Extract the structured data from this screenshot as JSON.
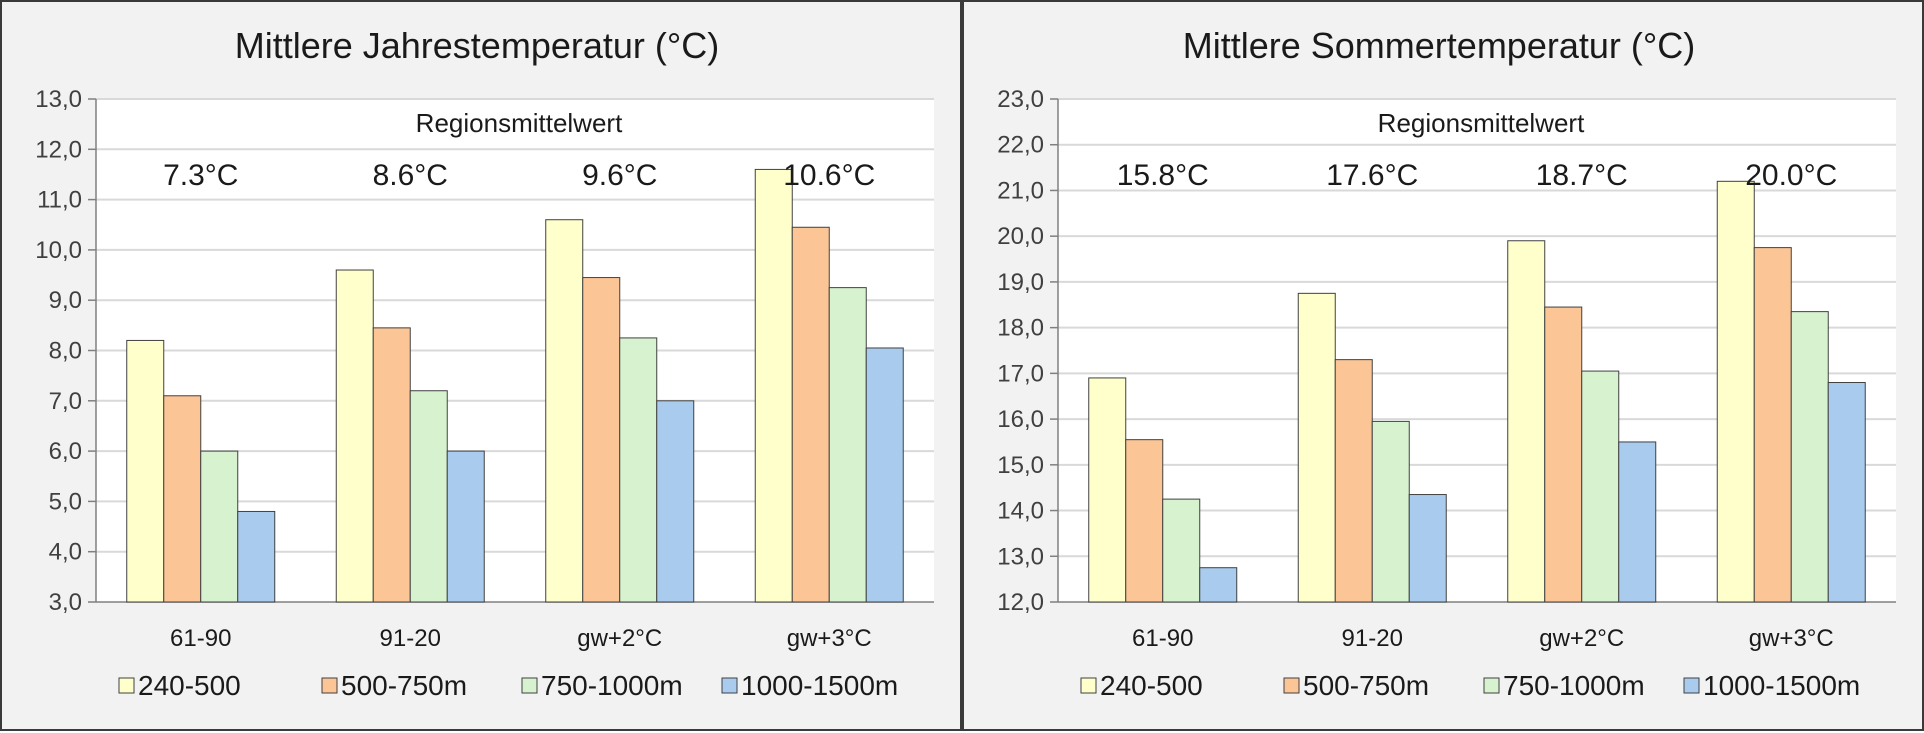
{
  "colors": {
    "240-500": "#ffffcc",
    "500-750m": "#fcc596",
    "750-1000m": "#d7f2cf",
    "1000-1500m": "#a9cbee",
    "bar_outline": "#404040",
    "grid": "#d9d9d9",
    "panel_background": "#f2f2f2"
  },
  "chart_data": [
    {
      "type": "bar",
      "title": "Mittlere Jahrestemperatur (°C)",
      "categories": [
        "61-90",
        "91-20",
        "gw+2°C",
        "gw+3°C"
      ],
      "ylim": [
        3.0,
        13.0
      ],
      "yticks": [
        "3,0",
        "4,0",
        "5,0",
        "6,0",
        "7,0",
        "8,0",
        "9,0",
        "10,0",
        "11,0",
        "12,0",
        "13,0"
      ],
      "ytick_step": 1.0,
      "grid": true,
      "legend_position": "bottom",
      "annotation": "Regionsmittelwert",
      "region_means": [
        "7.3°C",
        "8.6°C",
        "9.6°C",
        "10.6°C"
      ],
      "series": [
        {
          "name": "240-500",
          "values": [
            8.2,
            9.6,
            10.6,
            11.6
          ]
        },
        {
          "name": "500-750m",
          "values": [
            7.1,
            8.45,
            9.45,
            10.45
          ]
        },
        {
          "name": "750-1000m",
          "values": [
            6.0,
            7.2,
            8.25,
            9.25
          ]
        },
        {
          "name": "1000-1500m",
          "values": [
            4.8,
            6.0,
            7.0,
            8.05
          ]
        }
      ]
    },
    {
      "type": "bar",
      "title": "Mittlere Sommertemperatur (°C)",
      "categories": [
        "61-90",
        "91-20",
        "gw+2°C",
        "gw+3°C"
      ],
      "ylim": [
        12.0,
        23.0
      ],
      "yticks": [
        "12,0",
        "13,0",
        "14,0",
        "15,0",
        "16,0",
        "17,0",
        "18,0",
        "19,0",
        "20,0",
        "21,0",
        "22,0",
        "23,0"
      ],
      "ytick_step": 1.0,
      "grid": true,
      "legend_position": "bottom",
      "annotation": "Regionsmittelwert",
      "region_means": [
        "15.8°C",
        "17.6°C",
        "18.7°C",
        "20.0°C"
      ],
      "series": [
        {
          "name": "240-500",
          "values": [
            16.9,
            18.75,
            19.9,
            21.2
          ]
        },
        {
          "name": "500-750m",
          "values": [
            15.55,
            17.3,
            18.45,
            19.75
          ]
        },
        {
          "name": "750-1000m",
          "values": [
            14.25,
            15.95,
            17.05,
            18.35
          ]
        },
        {
          "name": "1000-1500m",
          "values": [
            12.75,
            14.35,
            15.5,
            16.8
          ]
        }
      ]
    }
  ]
}
